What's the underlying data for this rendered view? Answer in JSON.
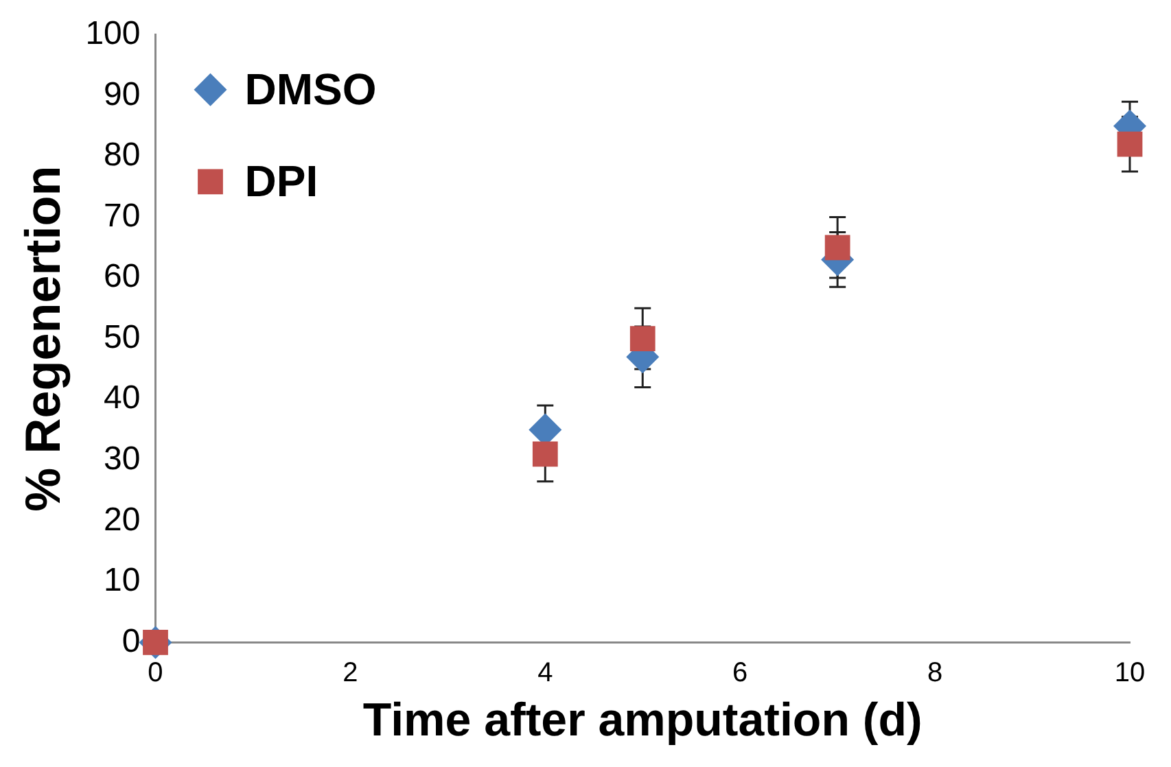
{
  "chart_data": {
    "type": "scatter",
    "xlabel": "Time after amputation (d)",
    "ylabel": "% Regenertion",
    "xlim": [
      0,
      10
    ],
    "xticks": [
      0,
      2,
      4,
      6,
      8,
      10
    ],
    "ylim": [
      0,
      100
    ],
    "yticks": [
      0,
      10,
      20,
      30,
      40,
      50,
      60,
      70,
      80,
      90,
      100
    ],
    "grid": false,
    "legend": "top left",
    "series": [
      {
        "name": "DMSO",
        "color": "#4a7ebb",
        "marker": "diamond",
        "x": [
          0,
          4,
          5,
          7,
          10
        ],
        "values": [
          0,
          35,
          47,
          63,
          85
        ],
        "errors": [
          null,
          4,
          5,
          4.5,
          4
        ]
      },
      {
        "name": "DPI",
        "color": "#c0504d",
        "marker": "square",
        "x": [
          0,
          4,
          5,
          7,
          10
        ],
        "values": [
          0,
          31,
          50,
          65,
          82
        ],
        "errors": [
          null,
          4.5,
          5,
          5,
          4.5
        ]
      }
    ]
  }
}
